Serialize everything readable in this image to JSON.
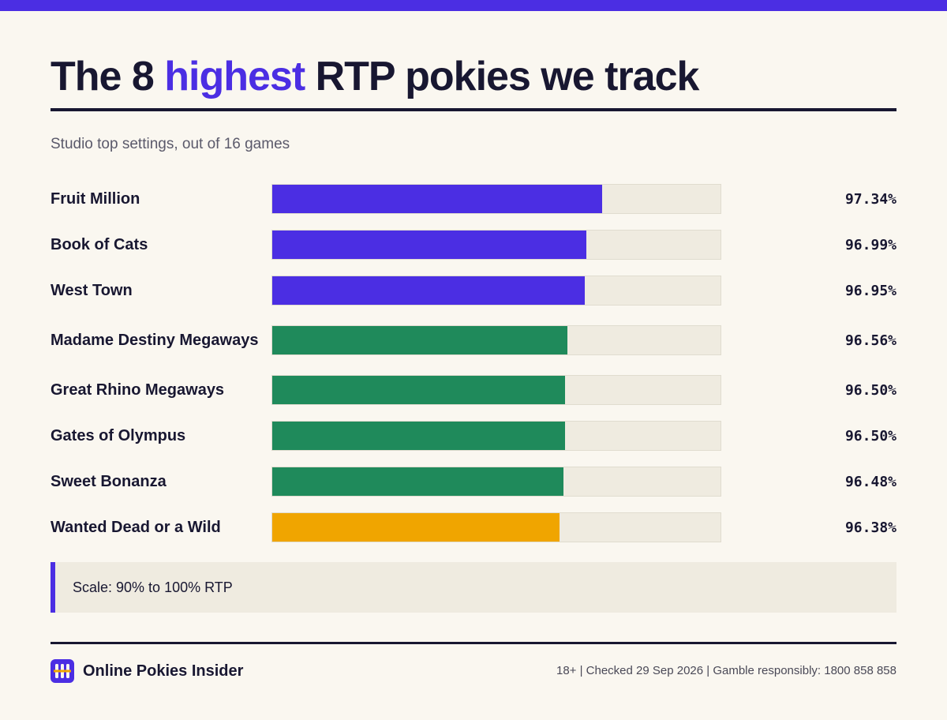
{
  "colors": {
    "accent": "#4b2ee3",
    "ink": "#181731",
    "green": "#1f8a5b",
    "amber": "#f0a500",
    "track": "#efebe0"
  },
  "header": {
    "title_part1": "The 8 ",
    "title_highlight": "highest",
    "title_part2": " RTP pokies we track",
    "subtitle": "Studio top settings, out of 16 games"
  },
  "chart_data": {
    "type": "bar",
    "orientation": "horizontal",
    "xlim": [
      90,
      100
    ],
    "categories": [
      "Fruit Million",
      "Book of Cats",
      "West Town",
      "Madame Destiny Megaways",
      "Great Rhino Megaways",
      "Gates of Olympus",
      "Sweet Bonanza",
      "Wanted Dead or a Wild"
    ],
    "values": [
      97.34,
      96.99,
      96.95,
      96.56,
      96.5,
      96.5,
      96.48,
      96.38
    ],
    "value_labels": [
      "97.34%",
      "96.99%",
      "96.95%",
      "96.56%",
      "96.50%",
      "96.50%",
      "96.48%",
      "96.38%"
    ],
    "bar_colors": [
      "#4b2ee3",
      "#4b2ee3",
      "#4b2ee3",
      "#1f8a5b",
      "#1f8a5b",
      "#1f8a5b",
      "#1f8a5b",
      "#f0a500"
    ]
  },
  "note": {
    "text": "Scale: 90% to 100% RTP"
  },
  "footer": {
    "brand": "Online Pokies Insider",
    "info": "18+ | Checked 29 Sep 2026 | Gamble responsibly: 1800 858 858",
    "logo_icon": "slot-reels-icon"
  }
}
